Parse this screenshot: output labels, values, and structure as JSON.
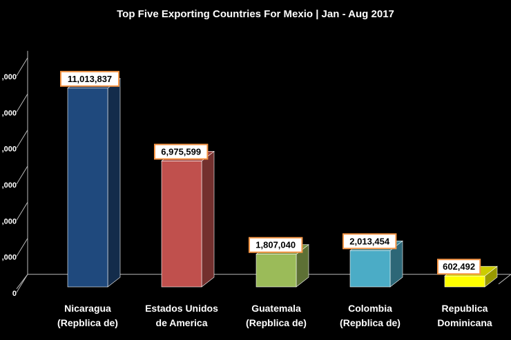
{
  "chart_data": {
    "type": "bar",
    "title": "Top Five Exporting Countries  For Mexio | Jan - Aug 2017",
    "categories": [
      [
        "Nicaragua",
        "(Repblica de)"
      ],
      [
        "Estados  Unidos",
        "de America"
      ],
      [
        "Guatemala",
        "(Repblica de)"
      ],
      [
        "Colombia",
        "(Repblica de)"
      ],
      [
        "Republica",
        "Dominicana"
      ]
    ],
    "values": [
      11013837,
      6975599,
      1807040,
      2013454,
      602492
    ],
    "value_labels": [
      "11,013,837",
      "6,975,599",
      "1,807,040",
      "2,013,454",
      "602,492"
    ],
    "colors": [
      "#1F497D",
      "#C0504D",
      "#9BBB59",
      "#4BACC6",
      "#FFFF00"
    ],
    "ylim": [
      0,
      12000000
    ],
    "yticks": [
      0,
      2000000,
      4000000,
      6000000,
      8000000,
      10000000,
      12000000
    ],
    "ytick_labels": [
      "0",
      ",000",
      ",000",
      ",000",
      ",000",
      ",000",
      ",000"
    ],
    "xlabel": "",
    "ylabel": "",
    "grid": false,
    "three_d": true
  }
}
